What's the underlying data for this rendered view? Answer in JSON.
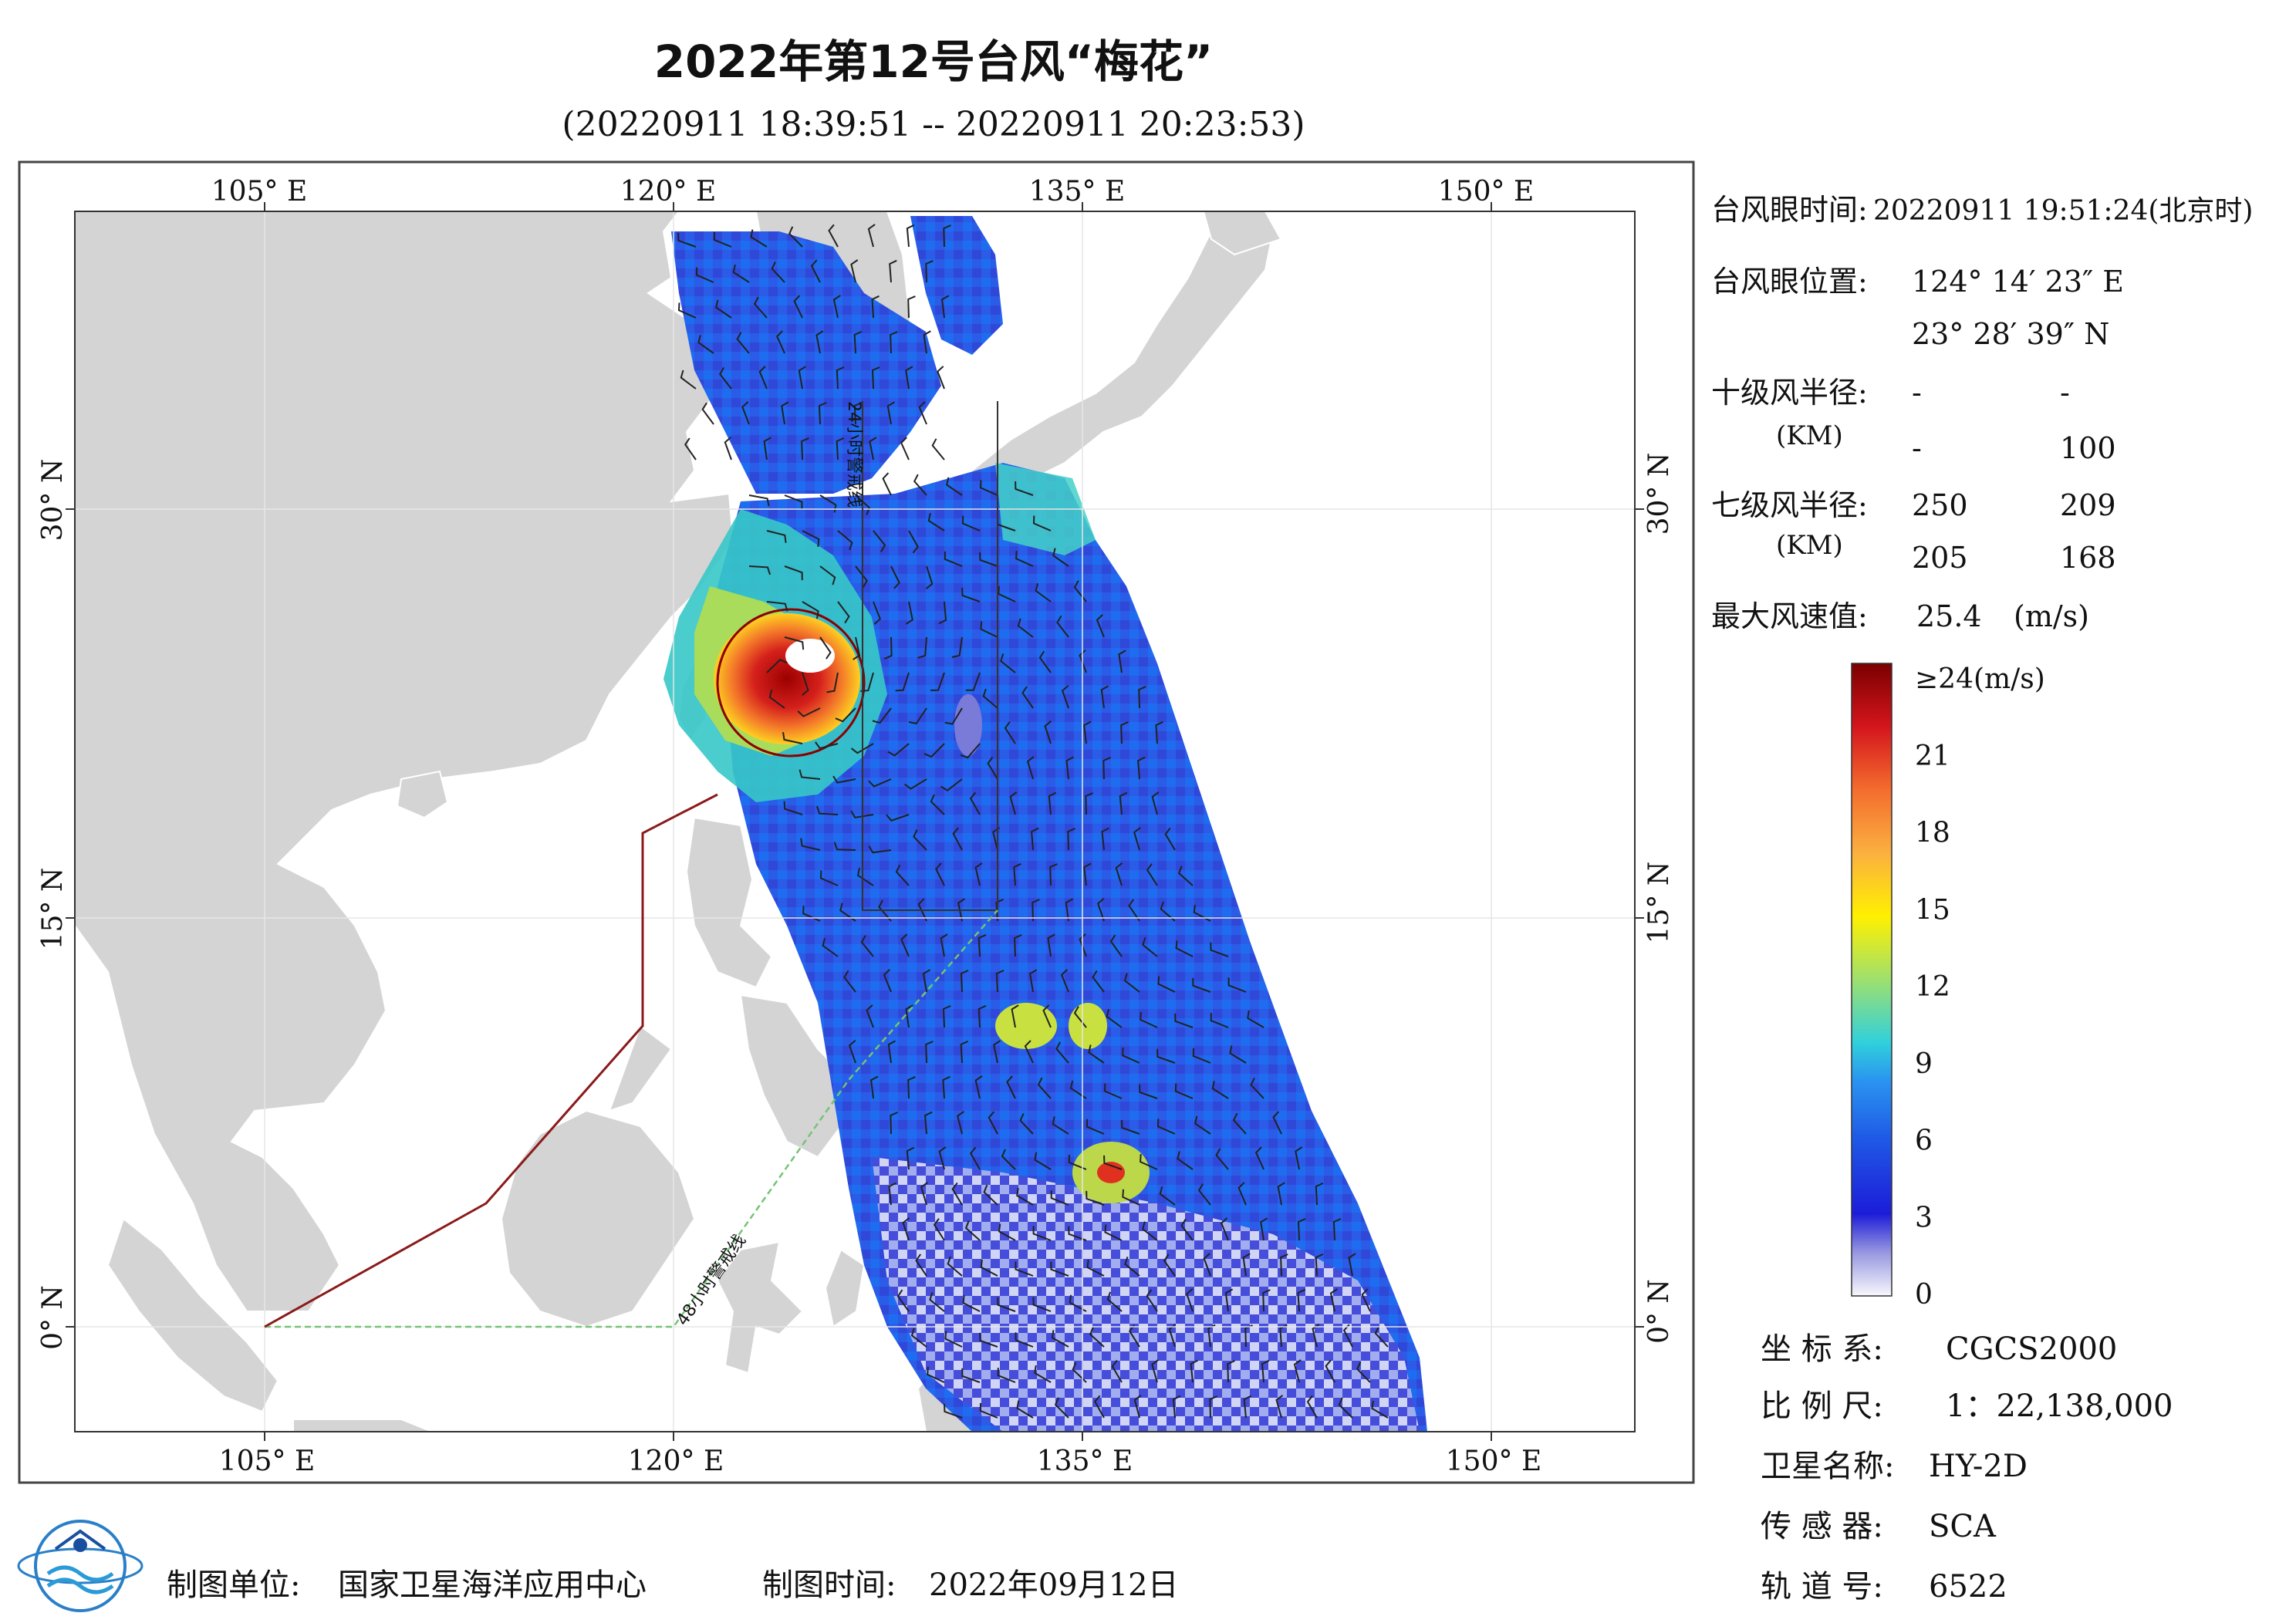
{
  "header": {
    "title": "2022年第12号台风“梅花”",
    "time_range": "(20220911 18:39:51 -- 20220911 20:23:53)"
  },
  "map": {
    "top_lon_labels": [
      "105° E",
      "120° E",
      "135° E",
      "150° E"
    ],
    "bottom_lon_labels": [
      "105° E",
      "120° E",
      "135° E",
      "150° E"
    ],
    "left_lat_labels": [
      "30° N",
      "15° N",
      "0° N"
    ],
    "right_lat_labels": [
      "30° N",
      "15° N",
      "0° N"
    ],
    "line_24h": "24小时警戒线",
    "line_48h": "48小时警戒线",
    "colors": {
      "land": "#d4d4d4",
      "sea": "#ffffff",
      "typhoon_core": "#c00000",
      "boundary_line": "#8b1a1a",
      "warning_48h": "#74c476"
    }
  },
  "info": {
    "eye_time_label": "台风眼时间:",
    "eye_time_value": "20220911 19:51:24(北京时)",
    "eye_pos_label": "台风眼位置:",
    "eye_pos_lon": "124° 14′ 23″ E",
    "eye_pos_lat": "23° 28′ 39″ N",
    "r10_label": "十级风半径:",
    "r10_unit": "(KM)",
    "r10_values": [
      "-",
      "-",
      "-",
      "100"
    ],
    "r7_label": "七级风半径:",
    "r7_unit": "(KM)",
    "r7_values": [
      "250",
      "209",
      "205",
      "168"
    ],
    "max_wind_label": "最大风速值:",
    "max_wind_value": "25.4",
    "max_wind_unit": "(m/s)"
  },
  "legend": {
    "ticks": [
      "≥24(m/s)",
      "21",
      "18",
      "15",
      "12",
      "9",
      "6",
      "3",
      "0"
    ],
    "colors": [
      "#7f0000",
      "#d7191c",
      "#f46d43",
      "#fdae61",
      "#ffd800",
      "#a6d96a",
      "#41d6c3",
      "#1e90ff",
      "#1f4fe0",
      "#1a1ad8",
      "#8f8fe0",
      "#f0f0fa"
    ]
  },
  "metadata": {
    "coord_label": "坐 标 系:",
    "coord_value": "CGCS2000",
    "scale_label": "比 例 尺:",
    "scale_value": "1：22,138,000",
    "satellite_label": "卫星名称:",
    "satellite_value": "HY-2D",
    "sensor_label": "传 感 器:",
    "sensor_value": "SCA",
    "orbit_label": "轨 道 号:",
    "orbit_value": "6522"
  },
  "footer": {
    "producer_label": "制图单位:",
    "producer_value": "国家卫星海洋应用中心",
    "date_label": "制图时间:",
    "date_value": "2022年09月12日"
  }
}
